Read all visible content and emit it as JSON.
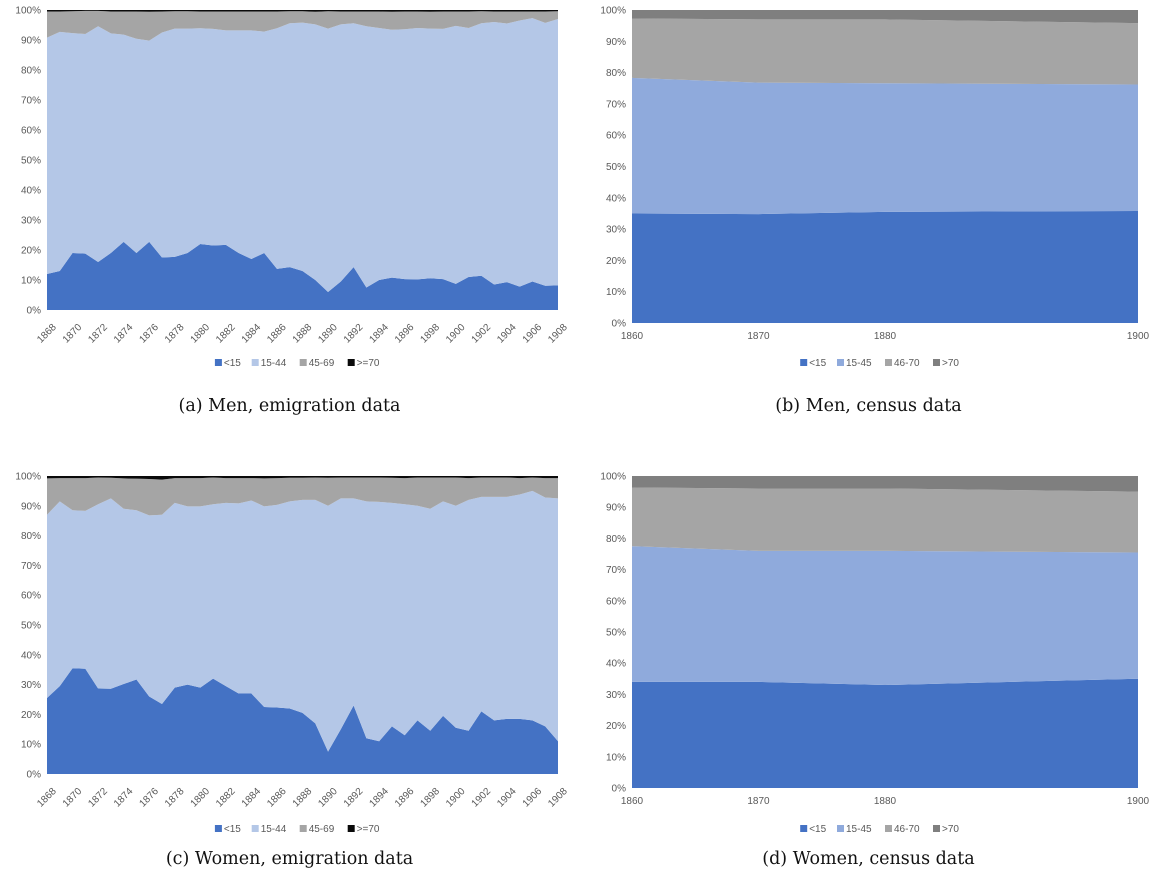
{
  "chart_data": [
    {
      "id": "a",
      "type": "area",
      "stacked": "percent",
      "caption": "(a) Men, emigration data",
      "x": [
        "1868",
        "1869",
        "1870",
        "1871",
        "1872",
        "1873",
        "1874",
        "1875",
        "1876",
        "1877",
        "1878",
        "1879",
        "1880",
        "1881",
        "1882",
        "1883",
        "1884",
        "1885",
        "1886",
        "1887",
        "1888",
        "1889",
        "1890",
        "1891",
        "1892",
        "1893",
        "1894",
        "1895",
        "1896",
        "1897",
        "1898",
        "1899",
        "1900",
        "1901",
        "1902",
        "1903",
        "1904",
        "1905",
        "1906",
        "1907",
        "1908"
      ],
      "x_tick_labels": [
        "1868",
        "1870",
        "1872",
        "1874",
        "1876",
        "1878",
        "1880",
        "1882",
        "1884",
        "1886",
        "1888",
        "1890",
        "1892",
        "1894",
        "1896",
        "1898",
        "1900",
        "1902",
        "1904",
        "1906",
        "1908"
      ],
      "y_tick_labels": [
        "0%",
        "10%",
        "20%",
        "30%",
        "40%",
        "50%",
        "60%",
        "70%",
        "80%",
        "90%",
        "100%"
      ],
      "ylim": [
        0,
        100
      ],
      "legend_position": "bottom",
      "series": [
        {
          "name": "<15",
          "color": "#4472c4",
          "values": [
            12,
            13,
            19,
            18.8,
            16,
            19,
            22.7,
            19,
            22.7,
            17.5,
            17.7,
            19,
            22,
            21.5,
            21.7,
            19,
            17,
            19,
            13.7,
            14.3,
            13,
            10,
            6,
            9.5,
            14.3,
            7.5,
            10,
            10.8,
            10.3,
            10.2,
            10.6,
            10.3,
            8.7,
            11,
            11.4,
            8.5,
            9.3,
            7.8,
            9.5,
            8.1,
            8.2
          ]
        },
        {
          "name": "15-44",
          "color": "#b4c7e7",
          "values": [
            78.8,
            79.7,
            73.3,
            73.2,
            78.6,
            73.2,
            69.1,
            71.4,
            67.1,
            75,
            76.1,
            74.8,
            71.9,
            72.2,
            71.5,
            74.2,
            76.2,
            73.8,
            80.2,
            81.3,
            82.8,
            85.2,
            87.8,
            85.7,
            81.3,
            87.1,
            84,
            82.6,
            83.3,
            83.8,
            83.2,
            83.4,
            86,
            83,
            84.2,
            87.5,
            86.2,
            88.7,
            87.8,
            87.6,
            88.8
          ]
        },
        {
          "name": "45-69",
          "color": "#a5a5a5",
          "values": [
            8.7,
            6.8,
            7.3,
            7.7,
            5.1,
            7.3,
            7.7,
            9.1,
            9.6,
            7,
            5.8,
            5.8,
            5.6,
            5.8,
            6.3,
            6.3,
            6.3,
            6.7,
            5.6,
            4,
            3.8,
            4.2,
            5.8,
            4.3,
            3.9,
            4.9,
            5.5,
            6,
            5.9,
            5.5,
            5.6,
            5.8,
            4.8,
            5.5,
            4,
            3.5,
            4,
            3,
            2.2,
            3.8,
            2.6
          ]
        },
        {
          "name": ">=70",
          "color": "#0a0a0a",
          "values": [
            0.5,
            0.5,
            0.4,
            0.3,
            0.3,
            0.5,
            0.5,
            0.5,
            0.6,
            0.5,
            0.4,
            0.4,
            0.5,
            0.5,
            0.5,
            0.5,
            0.5,
            0.5,
            0.5,
            0.4,
            0.4,
            0.6,
            0.4,
            0.5,
            0.5,
            0.5,
            0.5,
            0.6,
            0.5,
            0.5,
            0.6,
            0.5,
            0.5,
            0.5,
            0.4,
            0.5,
            0.5,
            0.5,
            0.5,
            0.5,
            0.4
          ]
        }
      ]
    },
    {
      "id": "b",
      "type": "area",
      "stacked": "percent",
      "caption": "(b) Men, census data",
      "x": [
        1860,
        1870,
        1880,
        1900
      ],
      "x_tick_labels": [
        "1860",
        "1870",
        "1880",
        "1900"
      ],
      "y_tick_labels": [
        "0%",
        "10%",
        "20%",
        "30%",
        "40%",
        "50%",
        "60%",
        "70%",
        "80%",
        "90%",
        "100%"
      ],
      "ylim": [
        0,
        100
      ],
      "legend_position": "bottom",
      "series": [
        {
          "name": "<15",
          "color": "#4472c4",
          "values": [
            35,
            34.8,
            35.5,
            35.8
          ]
        },
        {
          "name": "15-45",
          "color": "#8faadc",
          "values": [
            43.3,
            42,
            41.1,
            40.4
          ]
        },
        {
          "name": "46-70",
          "color": "#a5a5a5",
          "values": [
            19,
            20.2,
            20.4,
            19.6
          ]
        },
        {
          "name": ">70",
          "color": "#7f7f7f",
          "values": [
            2.7,
            3,
            3,
            4.2
          ]
        }
      ]
    },
    {
      "id": "c",
      "type": "area",
      "stacked": "percent",
      "caption": "(c) Women, emigration data",
      "x": [
        "1868",
        "1869",
        "1870",
        "1871",
        "1872",
        "1873",
        "1874",
        "1875",
        "1876",
        "1877",
        "1878",
        "1879",
        "1880",
        "1881",
        "1882",
        "1883",
        "1884",
        "1885",
        "1886",
        "1887",
        "1888",
        "1889",
        "1890",
        "1891",
        "1892",
        "1893",
        "1894",
        "1895",
        "1896",
        "1897",
        "1898",
        "1899",
        "1900",
        "1901",
        "1902",
        "1903",
        "1904",
        "1905",
        "1906",
        "1907",
        "1908"
      ],
      "x_tick_labels": [
        "1868",
        "1870",
        "1872",
        "1874",
        "1876",
        "1878",
        "1880",
        "1882",
        "1884",
        "1886",
        "1888",
        "1890",
        "1892",
        "1894",
        "1896",
        "1898",
        "1900",
        "1902",
        "1904",
        "1906",
        "1908"
      ],
      "y_tick_labels": [
        "0%",
        "10%",
        "20%",
        "30%",
        "40%",
        "50%",
        "60%",
        "70%",
        "80%",
        "90%",
        "100%"
      ],
      "ylim": [
        0,
        100
      ],
      "legend_position": "bottom",
      "series": [
        {
          "name": "<15",
          "color": "#4472c4",
          "values": [
            25.5,
            29.5,
            35.5,
            35.3,
            28.7,
            28.6,
            30.2,
            31.7,
            26,
            23.5,
            29,
            30,
            29,
            32,
            29.5,
            27,
            27,
            22.5,
            22.3,
            22,
            20.5,
            17,
            7.5,
            15,
            23,
            12,
            11,
            16,
            13,
            18,
            14.5,
            19.5,
            15.5,
            14.5,
            21,
            18,
            18.5,
            18.5,
            18,
            16,
            11
          ]
        },
        {
          "name": "15-44",
          "color": "#b4c7e7",
          "values": [
            61.5,
            62,
            53,
            53,
            61.8,
            63.9,
            58.8,
            56.8,
            60.8,
            63.5,
            62,
            59.8,
            60.8,
            58.5,
            61.5,
            63.8,
            64.8,
            67.3,
            68,
            69.5,
            71.5,
            75,
            82.5,
            77.5,
            69.5,
            79.5,
            80.3,
            75,
            77.5,
            72,
            74.5,
            72,
            74.5,
            77.5,
            72,
            75,
            74.5,
            75.3,
            77,
            76.8,
            81.5
          ]
        },
        {
          "name": "45-69",
          "color": "#a5a5a5",
          "values": [
            12.2,
            7.8,
            10.8,
            11,
            9,
            6.9,
            10.2,
            10.6,
            12.2,
            11.8,
            8.3,
            9.5,
            9.5,
            9,
            8.3,
            8.5,
            7.5,
            9.4,
            9,
            7.9,
            7.4,
            7.5,
            9.4,
            7,
            7,
            8,
            8.2,
            8.4,
            8.8,
            9.5,
            10.5,
            8,
            9.5,
            7.3,
            6.5,
            6.5,
            6.5,
            5.5,
            4.5,
            6.5,
            6.8
          ]
        },
        {
          "name": ">=70",
          "color": "#0a0a0a",
          "values": [
            0.8,
            0.7,
            0.7,
            0.7,
            0.5,
            0.6,
            0.8,
            0.9,
            1,
            1.2,
            0.7,
            0.7,
            0.7,
            0.5,
            0.7,
            0.7,
            0.7,
            0.8,
            0.7,
            0.6,
            0.6,
            0.5,
            0.6,
            0.5,
            0.5,
            0.5,
            0.5,
            0.6,
            0.7,
            0.5,
            0.5,
            0.5,
            0.5,
            0.7,
            0.5,
            0.5,
            0.5,
            0.7,
            0.5,
            0.7,
            0.7
          ]
        }
      ]
    },
    {
      "id": "d",
      "type": "area",
      "stacked": "percent",
      "caption": "(d) Women, census data",
      "x": [
        1860,
        1870,
        1880,
        1900
      ],
      "x_tick_labels": [
        "1860",
        "1870",
        "1880",
        "1900"
      ],
      "y_tick_labels": [
        "0%",
        "10%",
        "20%",
        "30%",
        "40%",
        "50%",
        "60%",
        "70%",
        "80%",
        "90%",
        "100%"
      ],
      "ylim": [
        0,
        100
      ],
      "legend_position": "bottom",
      "series": [
        {
          "name": "<15",
          "color": "#4472c4",
          "values": [
            34,
            34,
            33,
            35
          ]
        },
        {
          "name": "15-45",
          "color": "#8faadc",
          "values": [
            43.5,
            42,
            43,
            40.5
          ]
        },
        {
          "name": "46-70",
          "color": "#a5a5a5",
          "values": [
            18.8,
            20,
            20,
            19.5
          ]
        },
        {
          "name": ">70",
          "color": "#7f7f7f",
          "values": [
            3.7,
            4,
            4,
            5
          ]
        }
      ]
    }
  ]
}
